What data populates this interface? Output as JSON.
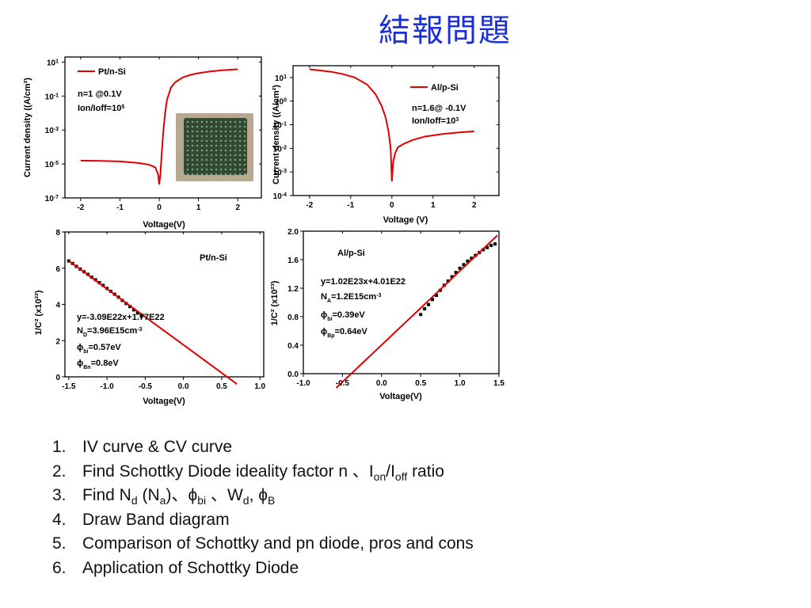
{
  "title": "結報問題",
  "chart_data": [
    {
      "type": "line",
      "scale": "log-y",
      "xlabel": "Voltage(V)",
      "ylabel": "Current density ((A/cm²)",
      "xticks": [
        "-2",
        "-1",
        "0",
        "1",
        "2"
      ],
      "yticks": [
        {
          "base": "10",
          "exp": "1"
        },
        {
          "base": "10",
          "exp": "-1"
        },
        {
          "base": "10",
          "exp": "-3"
        },
        {
          "base": "10",
          "exp": "-5"
        },
        {
          "base": "10",
          "exp": "-7"
        }
      ],
      "xlim": [
        -2.4,
        2.6
      ],
      "ylim_log10": [
        -7,
        1.3
      ],
      "legend": "Pt/n-Si",
      "annotations": [
        {
          "text": "n=1 @0.1V"
        },
        {
          "text": "Ion/Ioff=10",
          "sup": "5"
        }
      ],
      "series": [
        {
          "name": "Pt/n-Si",
          "color": "#e00000",
          "x": [
            -2.0,
            -1.5,
            -1.0,
            -0.5,
            -0.25,
            -0.1,
            -0.03,
            0.0,
            0.03,
            0.06,
            0.1,
            0.15,
            0.2,
            0.3,
            0.4,
            0.6,
            0.8,
            1.0,
            1.3,
            1.6,
            2.0
          ],
          "log10_y": [
            -4.8,
            -4.82,
            -4.85,
            -4.95,
            -5.05,
            -5.2,
            -5.6,
            -6.2,
            -5.6,
            -4.5,
            -3.2,
            -2.0,
            -1.2,
            -0.5,
            -0.2,
            0.1,
            0.25,
            0.35,
            0.45,
            0.52,
            0.58
          ]
        }
      ]
    },
    {
      "type": "line",
      "scale": "log-y",
      "xlabel": "Voltage (V)",
      "ylabel": "Current density ((A/cm²)",
      "xticks": [
        "-2",
        "-1",
        "0",
        "1",
        "2"
      ],
      "yticks": [
        {
          "base": "10",
          "exp": "1"
        },
        {
          "base": "10",
          "exp": "0"
        },
        {
          "base": "10",
          "exp": "-1"
        },
        {
          "base": "10",
          "exp": "-2"
        },
        {
          "base": "10",
          "exp": "-3"
        },
        {
          "base": "10",
          "exp": "-4"
        }
      ],
      "xlim": [
        -2.4,
        2.6
      ],
      "ylim_log10": [
        -4,
        1.5
      ],
      "legend": "Al/p-Si",
      "annotations": [
        {
          "text": "n=1.6@ -0.1V"
        },
        {
          "text": "Ion/Ioff=10",
          "sup": "3"
        }
      ],
      "series": [
        {
          "name": "Al/p-Si",
          "color": "#e00000",
          "x": [
            -2.0,
            -1.5,
            -1.2,
            -0.9,
            -0.6,
            -0.4,
            -0.25,
            -0.15,
            -0.08,
            -0.03,
            0.0,
            0.03,
            0.08,
            0.15,
            0.3,
            0.5,
            0.8,
            1.2,
            1.6,
            2.0
          ],
          "log10_y": [
            1.35,
            1.25,
            1.15,
            1.0,
            0.7,
            0.3,
            -0.2,
            -0.7,
            -1.3,
            -2.0,
            -3.4,
            -2.6,
            -2.2,
            -1.95,
            -1.8,
            -1.65,
            -1.5,
            -1.4,
            -1.33,
            -1.28
          ]
        }
      ]
    },
    {
      "type": "scatter",
      "xlabel": "Voltage(V)",
      "ylabel": "1/C² (x10²²)",
      "xticks": [
        "-1.5",
        "-1.0",
        "-0.5",
        "0.0",
        "0.5",
        "1.0"
      ],
      "yticks": [
        "0",
        "2",
        "4",
        "6",
        "8"
      ],
      "xlim": [
        -1.55,
        1.05
      ],
      "ylim": [
        0,
        8
      ],
      "legend": "Pt/n-Si",
      "annotations": [
        {
          "text": "y=-3.09E22x+1.77E22"
        },
        {
          "pre": "N",
          "sub": "D",
          "post": "=3.96E15cm",
          "sup": "-3"
        },
        {
          "pre": "ϕ",
          "sub": "bi",
          "post": "=0.57eV"
        },
        {
          "pre": "ϕ",
          "sub": "Bn",
          "post": "=0.8eV"
        }
      ],
      "points": {
        "x": [
          -1.5,
          -1.45,
          -1.4,
          -1.35,
          -1.3,
          -1.25,
          -1.2,
          -1.15,
          -1.1,
          -1.05,
          -1.0,
          -0.95,
          -0.9,
          -0.85,
          -0.8,
          -0.75,
          -0.7,
          -0.65,
          -0.6,
          -0.55
        ],
        "y": [
          6.4,
          6.26,
          6.1,
          5.95,
          5.8,
          5.66,
          5.5,
          5.36,
          5.2,
          5.05,
          4.88,
          4.72,
          4.56,
          4.4,
          4.22,
          4.05,
          3.88,
          3.7,
          3.52,
          3.35
        ]
      },
      "fit_line": {
        "x": [
          -1.5,
          0.7
        ],
        "y": [
          6.4,
          -0.4
        ],
        "color": "#e00000"
      }
    },
    {
      "type": "scatter",
      "xlabel": "Voltage(V)",
      "ylabel": "1/C² (x10²³)",
      "xticks": [
        "-1.0",
        "-0.5",
        "0.0",
        "0.5",
        "1.0",
        "1.5"
      ],
      "yticks": [
        "0.0",
        "0.4",
        "0.8",
        "1.2",
        "1.6",
        "2.0"
      ],
      "xlim": [
        -1.0,
        1.5
      ],
      "ylim": [
        0,
        2.0
      ],
      "legend": "Al/p-Si",
      "annotations": [
        {
          "text": "y=1.02E23x+4.01E22"
        },
        {
          "pre": "N",
          "sub": "A",
          "post": "=1.2E15cm",
          "sup": "-3"
        },
        {
          "pre": "ϕ",
          "sub": "bi",
          "post": "=0.39eV"
        },
        {
          "pre": "ϕ",
          "sub": "Bp",
          "post": "=0.64eV"
        }
      ],
      "points": {
        "x": [
          0.5,
          0.55,
          0.6,
          0.65,
          0.7,
          0.75,
          0.8,
          0.85,
          0.9,
          0.95,
          1.0,
          1.05,
          1.1,
          1.15,
          1.2,
          1.25,
          1.3,
          1.35,
          1.4,
          1.45
        ],
        "y": [
          0.83,
          0.91,
          0.97,
          1.04,
          1.1,
          1.17,
          1.24,
          1.3,
          1.36,
          1.42,
          1.48,
          1.53,
          1.58,
          1.62,
          1.66,
          1.7,
          1.74,
          1.77,
          1.8,
          1.82
        ]
      },
      "fit_line": {
        "x": [
          -0.58,
          1.48
        ],
        "y": [
          -0.2,
          1.94
        ],
        "color": "#e00000"
      }
    }
  ],
  "list": [
    {
      "num": "1.",
      "parts": [
        {
          "t": "IV curve & CV curve"
        }
      ]
    },
    {
      "num": "2.",
      "parts": [
        {
          "t": "Find Schottky Diode ideality factor n 、I"
        },
        {
          "sub": "on"
        },
        {
          "t": "/I"
        },
        {
          "sub": "off"
        },
        {
          "t": " ratio"
        }
      ]
    },
    {
      "num": "3.",
      "parts": [
        {
          "t": "Find N"
        },
        {
          "sub": "d"
        },
        {
          "t": " (N"
        },
        {
          "sub": "a"
        },
        {
          "t": ")、ϕ"
        },
        {
          "sub": "bi"
        },
        {
          "t": " 、W"
        },
        {
          "sub": "d"
        },
        {
          "t": ", ϕ"
        },
        {
          "sub": "B"
        }
      ]
    },
    {
      "num": "4.",
      "parts": [
        {
          "t": "Draw Band diagram"
        }
      ]
    },
    {
      "num": "5.",
      "parts": [
        {
          "t": "Comparison of Schottky and pn diode, pros and cons"
        }
      ]
    },
    {
      "num": "6.",
      "parts": [
        {
          "t": "Application of Schottky Diode"
        }
      ]
    }
  ]
}
